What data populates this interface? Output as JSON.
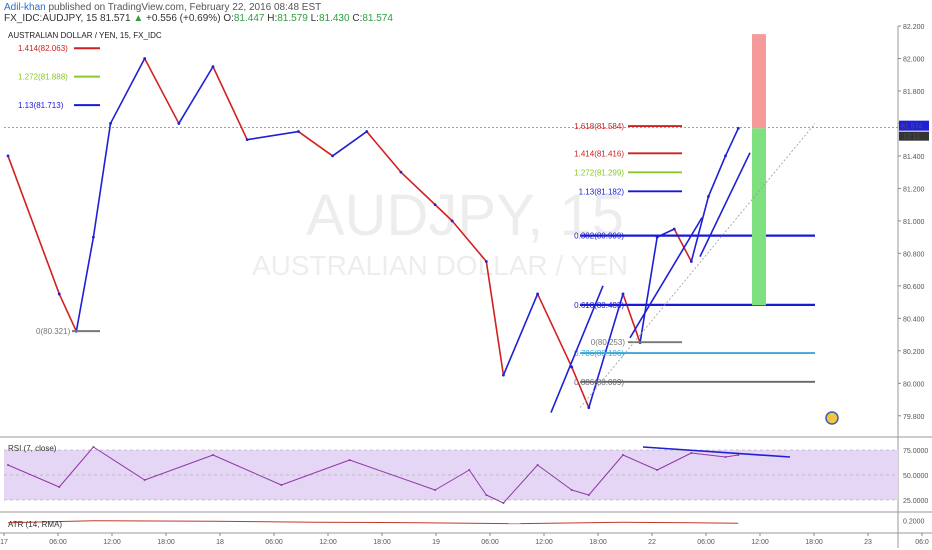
{
  "header": {
    "author": "Adil-khan",
    "published_text": "published on TradingView.com, February 22, 2016 08:48 EST",
    "symbol": "FX_IDC:AUDJPY, 15",
    "last": "81.571",
    "change": "+0.556 (+0.69%)",
    "open_label": "O:",
    "open": "81.447",
    "high_label": "H:",
    "high": "81.579",
    "low_label": "L:",
    "low": "81.430",
    "close_label": "C:",
    "close": "81.574"
  },
  "chart_title": "AUSTRALIAN DOLLAR / YEN, 15, FX_IDC",
  "watermark": {
    "symbol": "AUDJPY, 15",
    "name": "AUSTRALIAN DOLLAR / YEN"
  },
  "price_badge": {
    "price": "81.574",
    "countdown": "12:11"
  },
  "colors": {
    "up": "#1f1fd6",
    "down": "#d42020",
    "red_level": "#cc2222",
    "green_level": "#8ac926",
    "blue_level": "#1a1ad6",
    "cyan_level": "#3aa7d6",
    "rsi_line": "#8e3aa6",
    "rsi_band": "#e6d6f5",
    "atr_line": "#c0392b",
    "target_red": "#f59a9a",
    "target_green": "#7fe07f"
  },
  "chart_data": [
    {
      "type": "line",
      "title": "AUSTRALIAN DOLLAR / YEN, 15, FX_IDC",
      "y_ticks": [
        "82.200",
        "82.000",
        "81.800",
        "81.600",
        "81.400",
        "81.200",
        "81.000",
        "80.800",
        "80.600",
        "80.400",
        "80.200",
        "80.000",
        "79.800"
      ],
      "x_ticks": [
        "17",
        "06:00",
        "12:00",
        "18:00",
        "18",
        "06:00",
        "12:00",
        "18:00",
        "19",
        "06:00",
        "12:00",
        "18:00",
        "22",
        "06:00",
        "12:00",
        "18:00",
        "23",
        "06:0"
      ],
      "ylim": [
        79.7,
        82.2
      ],
      "series": [
        {
          "name": "",
          "x": [
            "17 00:00",
            "17 06:00",
            "17 08:00",
            "17 10:00",
            "17 12:00",
            "17 16:00",
            "17 20:00",
            "18 00:00",
            "18 04:00",
            "18 10:00",
            "18 14:00",
            "18 18:00",
            "18 22:00",
            "19 02:00",
            "19 04:00",
            "19 08:00",
            "19 10:00",
            "19 14:00",
            "19 18:00",
            "19 20:00",
            "22 00:00",
            "22 02:00",
            "22 04:00",
            "22 06:00",
            "22 08:00",
            "22 10:00",
            "22 12:00",
            "22 13:30"
          ],
          "y": [
            81.4,
            80.55,
            80.32,
            80.9,
            81.6,
            82.0,
            81.6,
            81.95,
            81.5,
            81.55,
            81.4,
            81.55,
            81.3,
            81.1,
            81.0,
            80.75,
            80.05,
            80.55,
            80.1,
            79.85,
            80.55,
            80.25,
            80.9,
            80.95,
            80.75,
            81.15,
            81.4,
            81.57
          ]
        }
      ],
      "fib_left": [
        {
          "label": "1.414(82.063)",
          "value": 82.063
        },
        {
          "label": "1.272(81.888)",
          "value": 81.888
        },
        {
          "label": "1.13(81.713)",
          "value": 81.713
        },
        {
          "label": "0(80.321)",
          "value": 80.321
        }
      ],
      "fib_right": [
        {
          "label": "1.618(81.584)",
          "value": 81.584
        },
        {
          "label": "1.414(81.416)",
          "value": 81.416
        },
        {
          "label": "1.272(81.299)",
          "value": 81.299
        },
        {
          "label": "1.13(81.182)",
          "value": 81.182
        },
        {
          "label": "0.382(80.909)",
          "value": 80.909
        },
        {
          "label": "0.618(80.483)",
          "value": 80.483
        },
        {
          "label": "0(80.253)",
          "value": 80.253
        },
        {
          "label": "0.786(80.186)",
          "value": 80.186
        },
        {
          "label": "0.886(80.009)",
          "value": 80.009
        }
      ],
      "target_box": {
        "top": 82.15,
        "entry": 81.57,
        "bottom": 80.48
      }
    },
    {
      "type": "line",
      "title": "RSI (7, close)",
      "y_ticks": [
        "75.0000",
        "50.0000",
        "25.0000"
      ],
      "ylim": [
        15,
        85
      ],
      "band": [
        25,
        75
      ],
      "series": [
        {
          "name": "",
          "x": [
            "17 00:00",
            "17 06:00",
            "17 10:00",
            "17 16:00",
            "18 00:00",
            "18 08:00",
            "18 16:00",
            "19 02:00",
            "19 06:00",
            "19 08:00",
            "19 10:00",
            "19 14:00",
            "19 18:00",
            "19 20:00",
            "22 00:00",
            "22 04:00",
            "22 08:00",
            "22 12:00",
            "22 13:30"
          ],
          "y": [
            60,
            38,
            78,
            45,
            70,
            40,
            65,
            35,
            55,
            30,
            22,
            60,
            35,
            30,
            70,
            55,
            72,
            68,
            70
          ]
        }
      ]
    },
    {
      "type": "line",
      "title": "ATR (14, RMA)",
      "y_ticks": [
        "0.2000"
      ],
      "ylim": [
        0,
        0.35
      ],
      "series": [
        {
          "name": "",
          "x": [
            "17 00:00",
            "17 10:00",
            "18 00:00",
            "18 12:00",
            "19 00:00",
            "19 12:00",
            "22 00:00",
            "22 08:00",
            "22 13:30"
          ],
          "y": [
            0.15,
            0.19,
            0.18,
            0.16,
            0.15,
            0.13,
            0.16,
            0.15,
            0.14
          ]
        }
      ]
    }
  ]
}
